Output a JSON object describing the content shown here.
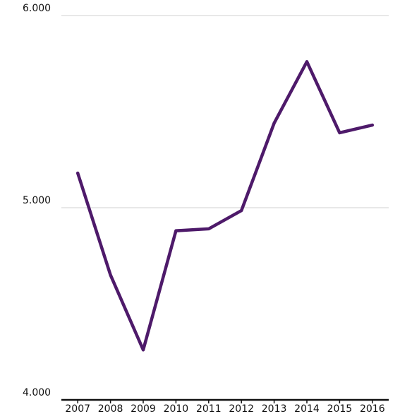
{
  "chart_data": {
    "type": "line",
    "categories": [
      "2007",
      "2008",
      "2009",
      "2010",
      "2011",
      "2012",
      "2013",
      "2014",
      "2015",
      "2016"
    ],
    "series": [
      {
        "color": "#4e1a6a",
        "values": [
          5180,
          4650,
          4260,
          4880,
          4890,
          4985,
          5440,
          5760,
          5390,
          5430
        ]
      }
    ],
    "ylim": [
      4000,
      6000
    ],
    "yticks": [
      {
        "value": 4000,
        "label": "4.000"
      },
      {
        "value": 5000,
        "label": "5.000"
      },
      {
        "value": 6000,
        "label": "6.000"
      }
    ],
    "grid": true
  }
}
